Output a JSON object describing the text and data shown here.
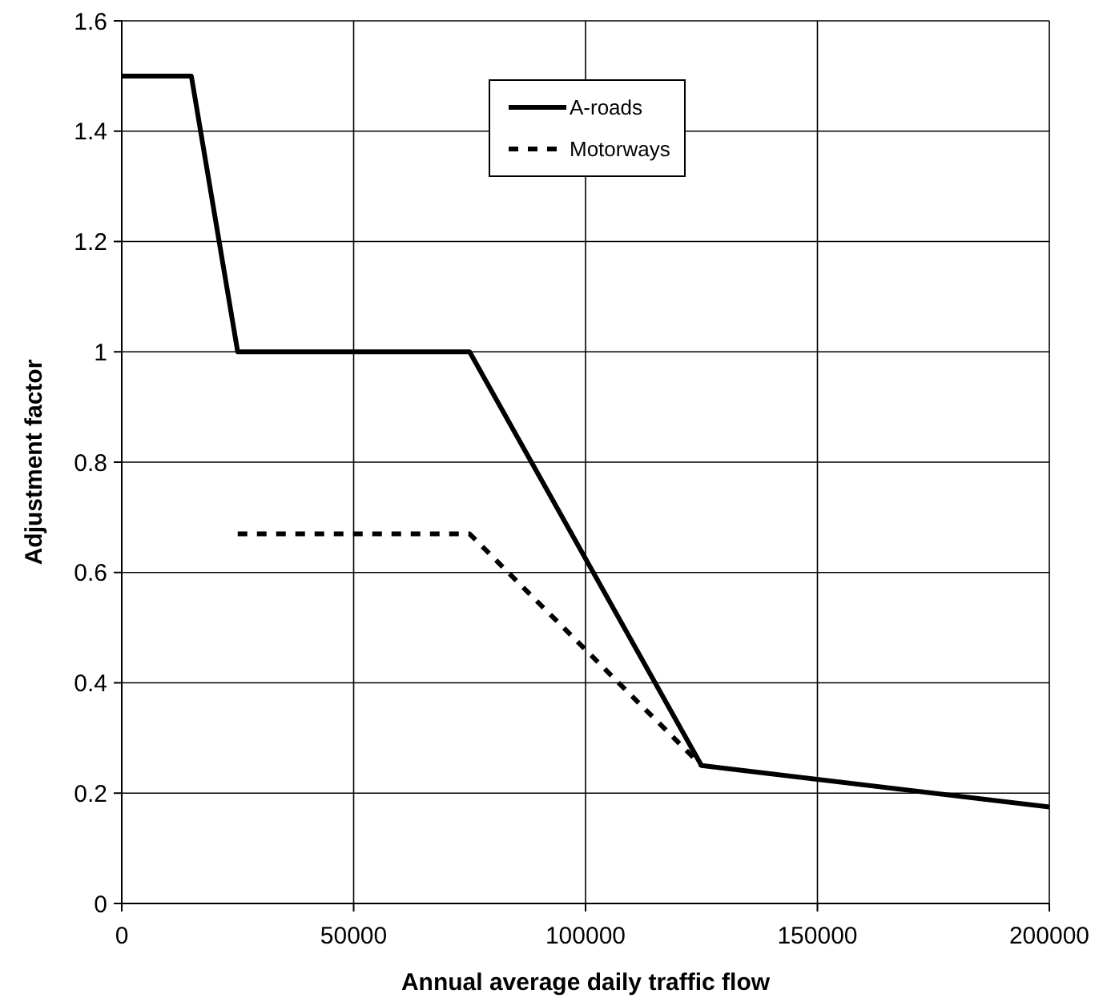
{
  "chart_data": {
    "type": "line",
    "xlabel": "Annual average daily traffic flow",
    "ylabel": "Adjustment factor",
    "xlim": [
      0,
      200000
    ],
    "xticks": [
      0,
      50000,
      100000,
      150000,
      200000
    ],
    "ylim": [
      0,
      1.6
    ],
    "yticks": [
      0,
      0.2,
      0.4,
      0.6,
      0.8,
      1,
      1.2,
      1.4,
      1.6
    ],
    "grid": true,
    "legend": "top",
    "marker": "none",
    "series": [
      {
        "name": "A-roads",
        "color": "#000000",
        "line_style": "solid",
        "x": [
          0,
          15000,
          25000,
          75000,
          125000,
          200000
        ],
        "values": [
          1.5,
          1.5,
          1,
          1,
          0.25,
          0.175
        ]
      },
      {
        "name": "Motorways",
        "color": "#000000",
        "line_style": "dashed",
        "x": [
          25000,
          75000,
          125000
        ],
        "values": [
          0.67,
          0.67,
          0.25
        ]
      }
    ]
  }
}
